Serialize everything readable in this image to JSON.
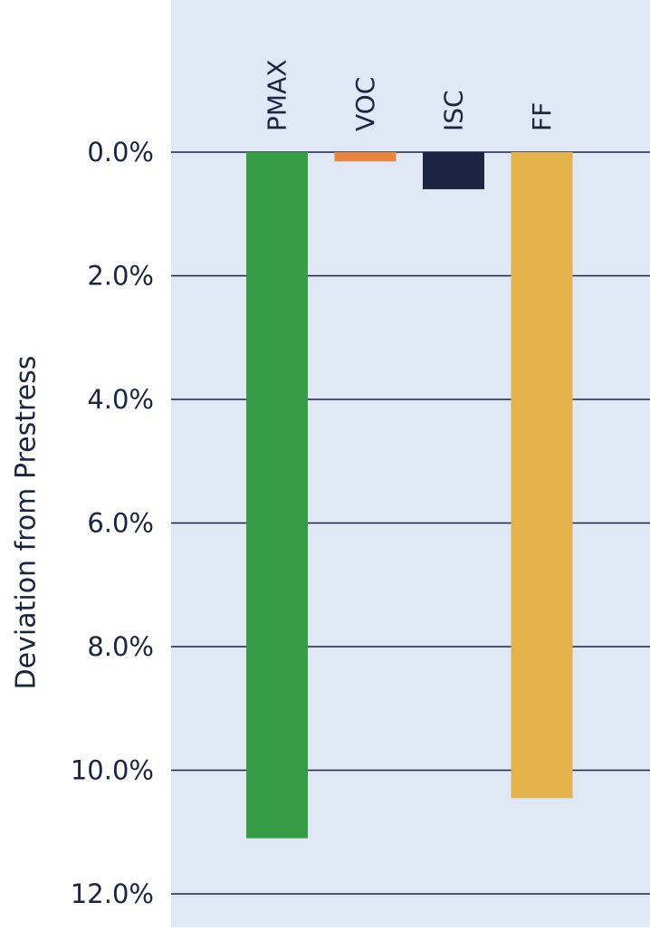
{
  "chart_data": {
    "type": "bar",
    "categories": [
      "PMAX",
      "VOC",
      "ISC",
      "FF"
    ],
    "values": [
      11.1,
      0.15,
      0.6,
      10.45
    ],
    "colors": [
      "#379c46",
      "#e8843f",
      "#1b2440",
      "#e4b34c"
    ],
    "ylabel": "Deviation from Prestress",
    "yticks": [
      "0.0%",
      "2.0%",
      "4.0%",
      "6.0%",
      "8.0%",
      "10.0%",
      "12.0%"
    ],
    "ytick_values": [
      0,
      2,
      4,
      6,
      8,
      10,
      12
    ],
    "ylim": [
      0,
      12
    ],
    "y_inverted": true,
    "grid": true,
    "background_color": "#dfe8f4",
    "text_color": "#1b2440",
    "grid_color": "#1b2440"
  }
}
